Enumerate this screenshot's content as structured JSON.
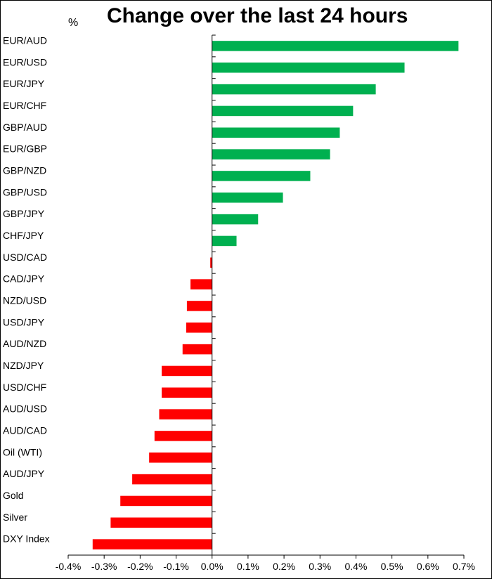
{
  "chart_data": {
    "type": "bar",
    "orientation": "horizontal",
    "title": "Change over the last 24 hours",
    "unit_label": "%",
    "xlim": [
      -0.4,
      0.7
    ],
    "x_ticks": [
      -0.4,
      -0.3,
      -0.2,
      -0.1,
      0.0,
      0.1,
      0.2,
      0.3,
      0.4,
      0.5,
      0.6,
      0.7
    ],
    "x_tick_labels": [
      "-0.4%",
      "-0.3%",
      "-0.2%",
      "-0.1%",
      "0.0%",
      "0.1%",
      "0.2%",
      "0.3%",
      "0.4%",
      "0.5%",
      "0.6%",
      "0.7%"
    ],
    "grid": false,
    "positive_color": "#00b050",
    "negative_color": "#ff0000",
    "categories": [
      "EUR/AUD",
      "EUR/USD",
      "EUR/JPY",
      "EUR/CHF",
      "GBP/AUD",
      "EUR/GBP",
      "GBP/NZD",
      "GBP/USD",
      "GBP/JPY",
      "CHF/JPY",
      "USD/CAD",
      "CAD/JPY",
      "NZD/USD",
      "USD/JPY",
      "AUD/NZD",
      "NZD/JPY",
      "USD/CHF",
      "AUD/USD",
      "AUD/CAD",
      "Oil (WTI)",
      "AUD/JPY",
      "Gold",
      "Silver",
      "DXY Index"
    ],
    "values": [
      0.685,
      0.535,
      0.455,
      0.392,
      0.355,
      0.328,
      0.273,
      0.197,
      0.128,
      0.068,
      -0.005,
      -0.06,
      -0.07,
      -0.072,
      -0.082,
      -0.14,
      -0.14,
      -0.147,
      -0.16,
      -0.175,
      -0.222,
      -0.255,
      -0.282,
      -0.332
    ]
  }
}
